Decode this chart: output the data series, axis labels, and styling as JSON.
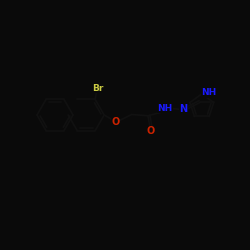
{
  "bg_color": "#0a0a0a",
  "atom_color_N": "#1a1aff",
  "atom_color_O": "#cc2200",
  "atom_color_Br": "#cccc00",
  "bond_color": "#000000",
  "bond_width": 1.2,
  "xlim": [
    0,
    10
  ],
  "ylim": [
    0,
    10
  ]
}
